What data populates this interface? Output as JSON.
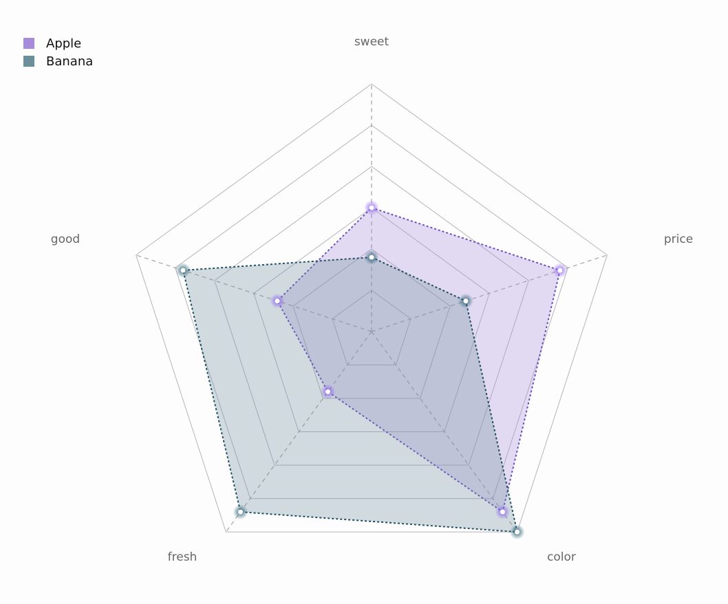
{
  "chart_data": {
    "type": "radar",
    "title": "",
    "indicators": [
      "sweet",
      "price",
      "color",
      "fresh",
      "good"
    ],
    "max": 100,
    "split_number": 6,
    "legend_position": "top-left",
    "series": [
      {
        "name": "Apple",
        "color": "#a78bdb",
        "line_color": "#6a4fc0",
        "values": [
          50,
          80,
          90,
          30,
          40
        ]
      },
      {
        "name": "Banana",
        "color": "#6c8f9c",
        "line_color": "#1f4e63",
        "values": [
          30,
          40,
          100,
          90,
          80
        ]
      }
    ]
  },
  "legend": {
    "items": [
      {
        "label": "Apple",
        "color": "#a78bdb"
      },
      {
        "label": "Banana",
        "color": "#6c8f9c"
      }
    ]
  }
}
